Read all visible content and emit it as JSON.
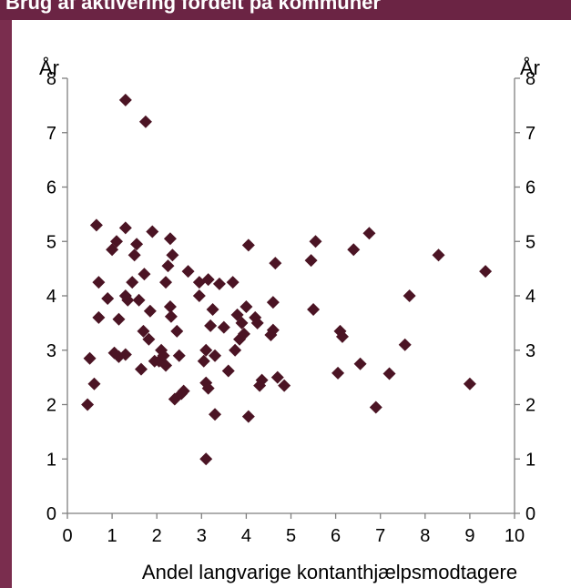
{
  "title": "Brug af aktivering fordelt på kommuner",
  "chart_data": {
    "type": "scatter",
    "xlabel": "Andel langvarige kontanthjælpsmodtagere",
    "ylabel_left": "År",
    "ylabel_right": "År",
    "xlim": [
      0,
      10
    ],
    "ylim": [
      0,
      8
    ],
    "x_ticks": [
      "0",
      "1",
      "2",
      "3",
      "4",
      "5",
      "6",
      "7",
      "8",
      "9",
      "10"
    ],
    "y_ticks": [
      "0",
      "1",
      "2",
      "3",
      "4",
      "5",
      "6",
      "7",
      "8"
    ],
    "marker": "diamond",
    "marker_color": "#4b1424",
    "grid": false,
    "points": [
      [
        0.45,
        2.0
      ],
      [
        0.5,
        2.85
      ],
      [
        0.6,
        2.38
      ],
      [
        0.65,
        5.3
      ],
      [
        0.7,
        4.25
      ],
      [
        0.7,
        3.6
      ],
      [
        0.9,
        3.95
      ],
      [
        1.0,
        4.85
      ],
      [
        1.05,
        2.95
      ],
      [
        1.1,
        5.0
      ],
      [
        1.15,
        3.57
      ],
      [
        1.15,
        2.88
      ],
      [
        1.3,
        7.6
      ],
      [
        1.3,
        5.25
      ],
      [
        1.3,
        2.92
      ],
      [
        1.3,
        4.0
      ],
      [
        1.35,
        3.92
      ],
      [
        1.45,
        4.25
      ],
      [
        1.5,
        4.75
      ],
      [
        1.55,
        4.95
      ],
      [
        1.6,
        3.92
      ],
      [
        1.65,
        2.65
      ],
      [
        1.7,
        3.35
      ],
      [
        1.72,
        4.4
      ],
      [
        1.75,
        7.2
      ],
      [
        1.82,
        3.2
      ],
      [
        1.85,
        3.72
      ],
      [
        1.9,
        5.18
      ],
      [
        1.95,
        2.8
      ],
      [
        2.05,
        2.8
      ],
      [
        2.1,
        3.0
      ],
      [
        2.15,
        2.9
      ],
      [
        2.2,
        2.72
      ],
      [
        2.2,
        4.25
      ],
      [
        2.25,
        4.55
      ],
      [
        2.3,
        5.05
      ],
      [
        2.3,
        3.8
      ],
      [
        2.32,
        3.62
      ],
      [
        2.35,
        4.75
      ],
      [
        2.4,
        2.1
      ],
      [
        2.45,
        3.35
      ],
      [
        2.5,
        2.9
      ],
      [
        2.55,
        2.2
      ],
      [
        2.6,
        2.25
      ],
      [
        2.7,
        4.45
      ],
      [
        2.95,
        4.25
      ],
      [
        2.95,
        4.0
      ],
      [
        3.05,
        2.8
      ],
      [
        3.1,
        2.4
      ],
      [
        3.1,
        1.0
      ],
      [
        3.1,
        3.0
      ],
      [
        3.15,
        4.3
      ],
      [
        3.15,
        2.3
      ],
      [
        3.2,
        3.45
      ],
      [
        3.25,
        3.75
      ],
      [
        3.3,
        2.9
      ],
      [
        3.3,
        1.82
      ],
      [
        3.4,
        4.22
      ],
      [
        3.5,
        3.42
      ],
      [
        3.6,
        2.62
      ],
      [
        3.7,
        4.25
      ],
      [
        3.75,
        3.0
      ],
      [
        3.8,
        3.65
      ],
      [
        3.85,
        3.2
      ],
      [
        3.9,
        3.5
      ],
      [
        3.95,
        3.3
      ],
      [
        4.0,
        3.8
      ],
      [
        4.05,
        1.78
      ],
      [
        4.05,
        4.93
      ],
      [
        4.2,
        3.6
      ],
      [
        4.25,
        3.5
      ],
      [
        4.3,
        2.35
      ],
      [
        4.35,
        2.45
      ],
      [
        4.55,
        3.28
      ],
      [
        4.6,
        3.88
      ],
      [
        4.6,
        3.37
      ],
      [
        4.65,
        4.6
      ],
      [
        4.7,
        2.5
      ],
      [
        4.85,
        2.35
      ],
      [
        5.45,
        4.65
      ],
      [
        5.5,
        3.75
      ],
      [
        5.55,
        5.0
      ],
      [
        6.05,
        2.58
      ],
      [
        6.1,
        3.35
      ],
      [
        6.15,
        3.25
      ],
      [
        6.4,
        4.85
      ],
      [
        6.55,
        2.75
      ],
      [
        6.75,
        5.15
      ],
      [
        6.9,
        1.95
      ],
      [
        7.2,
        2.57
      ],
      [
        7.55,
        3.1
      ],
      [
        7.65,
        4.0
      ],
      [
        8.3,
        4.75
      ],
      [
        9.0,
        2.38
      ],
      [
        9.35,
        4.45
      ]
    ]
  }
}
